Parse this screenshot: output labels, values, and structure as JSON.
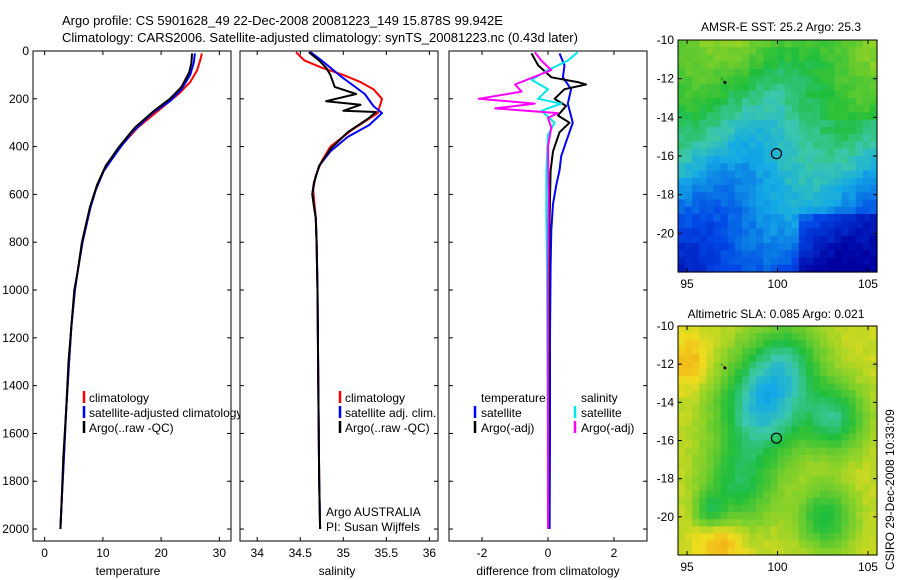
{
  "header": {
    "title_line1": "Argo profile: CS 5901628_49 22-Dec-2008 20081223_149 15.878S 99.942E",
    "title_line2": "Climatology: CARS2006. Satellite-adjusted climatology: synTS_20081223.nc (0.43d later)"
  },
  "side_label": "CSIRO 29-Dec-2008 10:33:09",
  "colors": {
    "climatology": "#ff0000",
    "satellite": "#0000ff",
    "argo": "#000000",
    "sat_salinity": "#00e5ee",
    "argo_salinity": "#ff00ff"
  },
  "chart_data": [
    {
      "type": "line",
      "name": "temperature-profile",
      "xlabel": "temperature",
      "ylabel": "",
      "xlim": [
        -2,
        32
      ],
      "ylim": [
        2050,
        0
      ],
      "xticks": [
        0,
        10,
        20,
        30
      ],
      "yticks": [
        0,
        200,
        400,
        600,
        800,
        1000,
        1200,
        1400,
        1600,
        1800,
        2000
      ],
      "legend": [
        "climatology",
        "satellite-adjusted climatology",
        "Argo(..raw -QC)"
      ],
      "series": [
        {
          "name": "climatology",
          "color": "#ff0000",
          "points": [
            [
              27,
              10
            ],
            [
              26.7,
              40
            ],
            [
              26.2,
              80
            ],
            [
              25,
              130
            ],
            [
              23,
              180
            ],
            [
              20,
              240
            ],
            [
              16,
              320
            ],
            [
              13,
              400
            ],
            [
              10.5,
              480
            ],
            [
              9,
              560
            ],
            [
              8,
              640
            ],
            [
              6.5,
              800
            ],
            [
              5.8,
              900
            ],
            [
              5.2,
              1000
            ],
            [
              4.6,
              1150
            ],
            [
              4.2,
              1300
            ],
            [
              3.7,
              1500
            ],
            [
              3.3,
              1700
            ],
            [
              2.9,
              1900
            ],
            [
              2.7,
              2000
            ]
          ]
        },
        {
          "name": "satellite-adjusted climatology",
          "color": "#0000ff",
          "points": [
            [
              25.8,
              10
            ],
            [
              25.6,
              50
            ],
            [
              25,
              100
            ],
            [
              23.5,
              160
            ],
            [
              21.5,
              210
            ],
            [
              18.5,
              260
            ],
            [
              15,
              340
            ],
            [
              12.5,
              420
            ],
            [
              10.2,
              500
            ],
            [
              8.8,
              580
            ],
            [
              7.8,
              660
            ],
            [
              6.5,
              800
            ],
            [
              5.7,
              920
            ],
            [
              5.2,
              1000
            ],
            [
              4.6,
              1150
            ],
            [
              4.2,
              1300
            ],
            [
              3.7,
              1500
            ],
            [
              3.3,
              1700
            ],
            [
              2.9,
              1900
            ],
            [
              2.7,
              2000
            ]
          ]
        },
        {
          "name": "Argo(..raw -QC)",
          "color": "#000000",
          "points": [
            [
              25.3,
              10
            ],
            [
              25.2,
              50
            ],
            [
              24.8,
              90
            ],
            [
              23.5,
              150
            ],
            [
              21.5,
              200
            ],
            [
              18.8,
              250
            ],
            [
              15.5,
              320
            ],
            [
              12.8,
              400
            ],
            [
              10.5,
              480
            ],
            [
              9,
              560
            ],
            [
              7.8,
              650
            ],
            [
              6.4,
              800
            ],
            [
              5.7,
              920
            ],
            [
              5.1,
              1000
            ],
            [
              4.6,
              1150
            ],
            [
              4.1,
              1300
            ],
            [
              3.7,
              1500
            ],
            [
              3.2,
              1700
            ],
            [
              2.9,
              1900
            ],
            [
              2.7,
              2000
            ]
          ]
        }
      ]
    },
    {
      "type": "line",
      "name": "salinity-profile",
      "xlabel": "salinity",
      "ylabel": "",
      "xlim": [
        33.8,
        36.1
      ],
      "ylim": [
        2050,
        0
      ],
      "xticks": [
        34,
        34.5,
        35,
        35.5,
        36
      ],
      "xtick_labels": [
        "34",
        "34.5",
        "35",
        "35.5",
        "36"
      ],
      "yticks": [
        0,
        200,
        400,
        600,
        800,
        1000,
        1200,
        1400,
        1600,
        1800,
        2000
      ],
      "legend": [
        "climatology",
        "satellite adj. clim.",
        "Argo(..raw -QC)"
      ],
      "annotations": [
        "Argo AUSTRALIA",
        "PI: Susan Wijffels"
      ],
      "series": [
        {
          "name": "climatology",
          "color": "#ff0000",
          "points": [
            [
              34.45,
              5
            ],
            [
              34.55,
              40
            ],
            [
              34.75,
              70
            ],
            [
              35.0,
              100
            ],
            [
              35.2,
              130
            ],
            [
              35.35,
              160
            ],
            [
              35.45,
              200
            ],
            [
              35.4,
              260
            ],
            [
              35.1,
              330
            ],
            [
              34.85,
              400
            ],
            [
              34.75,
              460
            ],
            [
              34.68,
              520
            ],
            [
              34.65,
              580
            ],
            [
              34.66,
              620
            ],
            [
              34.68,
              700
            ],
            [
              34.69,
              800
            ],
            [
              34.7,
              1000
            ],
            [
              34.71,
              1400
            ],
            [
              34.72,
              1800
            ],
            [
              34.73,
              2000
            ]
          ]
        },
        {
          "name": "satellite adj. clim.",
          "color": "#0000ff",
          "points": [
            [
              34.62,
              5
            ],
            [
              34.75,
              40
            ],
            [
              34.85,
              70
            ],
            [
              34.95,
              100
            ],
            [
              35.1,
              140
            ],
            [
              35.25,
              180
            ],
            [
              35.35,
              230
            ],
            [
              35.45,
              260
            ],
            [
              35.3,
              310
            ],
            [
              35.05,
              360
            ],
            [
              34.85,
              420
            ],
            [
              34.72,
              480
            ],
            [
              34.66,
              550
            ],
            [
              34.64,
              600
            ],
            [
              34.66,
              650
            ],
            [
              34.68,
              700
            ],
            [
              34.69,
              800
            ],
            [
              34.7,
              1000
            ],
            [
              34.71,
              1400
            ],
            [
              34.72,
              1800
            ],
            [
              34.73,
              2000
            ]
          ]
        },
        {
          "name": "Argo(..raw -QC)",
          "color": "#000000",
          "points": [
            [
              34.6,
              5
            ],
            [
              34.72,
              40
            ],
            [
              34.8,
              70
            ],
            [
              34.85,
              100
            ],
            [
              34.9,
              150
            ],
            [
              35.15,
              180
            ],
            [
              34.8,
              210
            ],
            [
              35.2,
              225
            ],
            [
              35.0,
              250
            ],
            [
              35.38,
              255
            ],
            [
              35.3,
              280
            ],
            [
              35.05,
              340
            ],
            [
              34.85,
              410
            ],
            [
              34.72,
              480
            ],
            [
              34.66,
              550
            ],
            [
              34.64,
              600
            ],
            [
              34.66,
              650
            ],
            [
              34.68,
              700
            ],
            [
              34.69,
              800
            ],
            [
              34.7,
              1000
            ],
            [
              34.71,
              1400
            ],
            [
              34.72,
              1800
            ],
            [
              34.73,
              2000
            ]
          ]
        }
      ]
    },
    {
      "type": "line",
      "name": "difference-profile",
      "xlabel": "difference from climatology",
      "ylabel": "",
      "xlim": [
        -3,
        3
      ],
      "ylim": [
        2050,
        0
      ],
      "xticks": [
        -2,
        0,
        2
      ],
      "yticks": [
        0,
        200,
        400,
        600,
        800,
        1000,
        1200,
        1400,
        1600,
        1800,
        2000
      ],
      "legend_headers": [
        "temperature",
        "salinity"
      ],
      "legend": [
        "satellite",
        "Argo(-adj)",
        "satellite",
        "Argo(-adj)"
      ],
      "series": [
        {
          "name": "temperature satellite",
          "color": "#0000ff",
          "points": [
            [
              0.35,
              10
            ],
            [
              0.5,
              60
            ],
            [
              0.45,
              110
            ],
            [
              0.7,
              160
            ],
            [
              0.6,
              220
            ],
            [
              0.75,
              300
            ],
            [
              0.55,
              380
            ],
            [
              0.4,
              440
            ],
            [
              0.35,
              500
            ],
            [
              0.25,
              560
            ],
            [
              0.15,
              640
            ],
            [
              0.1,
              750
            ],
            [
              0.08,
              900
            ],
            [
              0.06,
              1200
            ],
            [
              0.06,
              1600
            ],
            [
              0.05,
              2000
            ]
          ]
        },
        {
          "name": "temperature Argo(-adj)",
          "color": "#000000",
          "points": [
            [
              -0.5,
              10
            ],
            [
              -0.3,
              60
            ],
            [
              0.1,
              110
            ],
            [
              0.9,
              130
            ],
            [
              1.15,
              140
            ],
            [
              0.5,
              160
            ],
            [
              0.2,
              200
            ],
            [
              0.55,
              230
            ],
            [
              0.3,
              270
            ],
            [
              0.65,
              300
            ],
            [
              0.35,
              340
            ],
            [
              0.15,
              420
            ],
            [
              0.08,
              500
            ],
            [
              0.05,
              700
            ],
            [
              0.03,
              1000
            ],
            [
              0.02,
              1500
            ],
            [
              0.01,
              2000
            ]
          ]
        },
        {
          "name": "salinity satellite",
          "color": "#00e5ee",
          "points": [
            [
              0.9,
              5
            ],
            [
              0.6,
              40
            ],
            [
              0.0,
              80
            ],
            [
              -0.5,
              120
            ],
            [
              0.0,
              160
            ],
            [
              -0.3,
              200
            ],
            [
              0.4,
              220
            ],
            [
              -0.2,
              250
            ],
            [
              0.2,
              300
            ],
            [
              0.0,
              350
            ],
            [
              -0.05,
              500
            ],
            [
              -0.05,
              700
            ],
            [
              -0.03,
              900
            ],
            [
              -0.02,
              1200
            ],
            [
              -0.01,
              1600
            ],
            [
              0.0,
              2000
            ]
          ]
        },
        {
          "name": "salinity Argo(-adj)",
          "color": "#ff00ff",
          "points": [
            [
              -0.4,
              5
            ],
            [
              -0.2,
              40
            ],
            [
              0.1,
              80
            ],
            [
              -1.0,
              140
            ],
            [
              -0.8,
              170
            ],
            [
              -2.1,
              200
            ],
            [
              -0.4,
              220
            ],
            [
              -1.6,
              240
            ],
            [
              0.3,
              260
            ],
            [
              0.0,
              280
            ],
            [
              0.1,
              320
            ],
            [
              0.0,
              400
            ],
            [
              0.02,
              600
            ],
            [
              0.0,
              1000
            ],
            [
              0.0,
              2000
            ]
          ]
        }
      ]
    },
    {
      "type": "heatmap",
      "name": "sst-map",
      "title": "AMSR-E SST: 25.2 Argo: 25.3",
      "xlim": [
        94.5,
        105.5
      ],
      "ylim": [
        -22,
        -10
      ],
      "xticks": [
        95,
        100,
        105
      ],
      "yticks": [
        -10,
        -12,
        -14,
        -16,
        -18,
        -20
      ],
      "profile_marker": [
        99.942,
        -15.878
      ],
      "trajectory": [
        [
          96.9,
          -12.0
        ],
        [
          97.1,
          -12.2
        ]
      ]
    },
    {
      "type": "heatmap",
      "name": "sla-map",
      "title": "Altimetric SLA: 0.085 Argo: 0.021",
      "xlim": [
        94.5,
        105.5
      ],
      "ylim": [
        -22,
        -10
      ],
      "xticks": [
        95,
        100,
        105
      ],
      "yticks": [
        -10,
        -12,
        -14,
        -16,
        -18,
        -20
      ],
      "profile_marker": [
        99.942,
        -15.878
      ],
      "trajectory": [
        [
          96.9,
          -12.0
        ],
        [
          97.1,
          -12.2
        ]
      ]
    }
  ]
}
